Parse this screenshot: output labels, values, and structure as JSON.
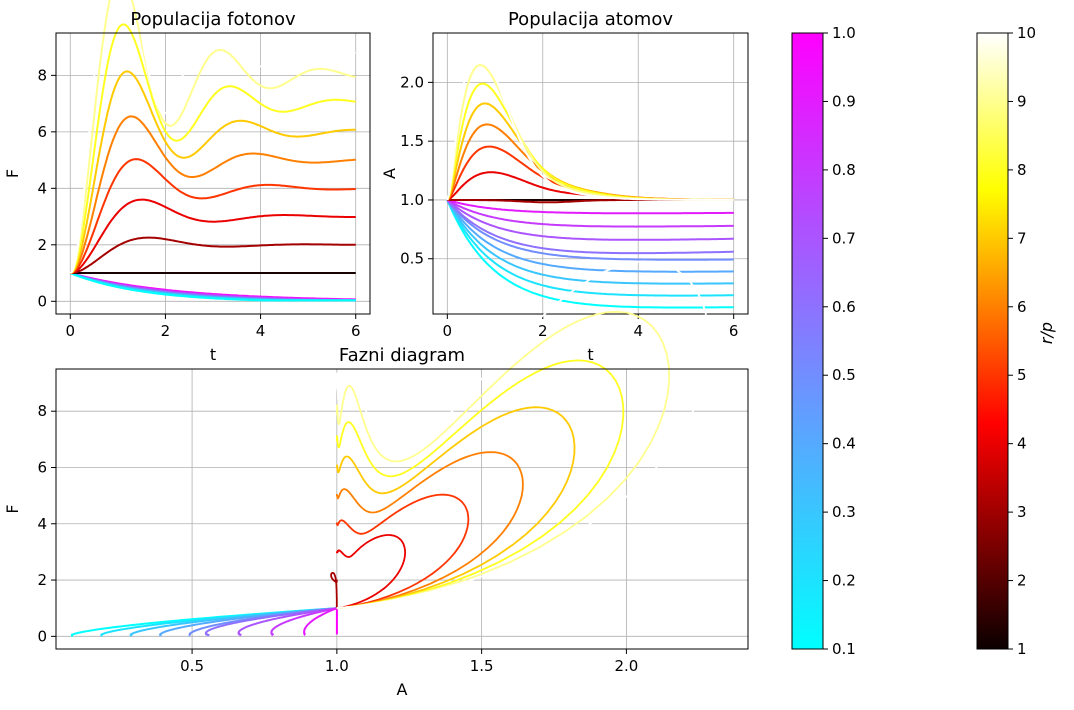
{
  "chart_data": [
    {
      "id": "photons",
      "type": "line",
      "title": "Populacija fotonov",
      "xlabel": "t",
      "ylabel": "F",
      "xlim": [
        -0.3,
        6.3
      ],
      "ylim": [
        -0.45,
        9.5
      ],
      "xticks": [
        0,
        2,
        4,
        6
      ],
      "yticks": [
        0,
        2,
        4,
        6,
        8
      ],
      "grid": true
    },
    {
      "id": "atoms",
      "type": "line",
      "title": "Populacija atomov",
      "xlabel": "t",
      "ylabel": "A",
      "xlim": [
        -0.3,
        6.3
      ],
      "ylim": [
        0.03,
        2.42
      ],
      "xticks": [
        0,
        2,
        4,
        6
      ],
      "yticks": [
        0.5,
        1.0,
        1.5,
        2.0
      ],
      "grid": true
    },
    {
      "id": "phase",
      "type": "line",
      "title": "Fazni diagram",
      "xlabel": "A",
      "ylabel": "F",
      "xlim": [
        0.03,
        2.42
      ],
      "ylim": [
        -0.45,
        9.5
      ],
      "xticks": [
        0.5,
        1.0,
        1.5,
        2.0
      ],
      "yticks": [
        0,
        2,
        4,
        6,
        8
      ],
      "grid": true
    }
  ],
  "series": {
    "r_over_p_values": [
      1,
      2,
      3,
      4,
      5,
      6,
      7,
      8,
      9,
      10
    ],
    "r_over_p_sub_values": [
      0.1,
      0.2,
      0.3,
      0.4,
      0.5,
      0.6,
      0.7,
      0.8,
      0.9,
      1.0
    ],
    "photon_steady_state": [
      1,
      2,
      3,
      4,
      5,
      6,
      7,
      8,
      9,
      10
    ],
    "photon_peak": [
      1.0,
      2.2,
      3.4,
      4.6,
      5.8,
      6.9,
      8.0,
      9.1
    ],
    "atom_peak": [
      1.0,
      1.24,
      1.46,
      1.65,
      1.83,
      2.0,
      2.16,
      2.3
    ],
    "atom_steady_state_sub": [
      0.1,
      0.2,
      0.3,
      0.4,
      0.5,
      0.6,
      0.7,
      0.8,
      0.9,
      1.0
    ]
  },
  "colorbars": [
    {
      "id": "cool",
      "colors": [
        "#00ffff",
        "#ff00ff"
      ],
      "range": [
        0.1,
        1.0
      ],
      "ticks": [
        "0.1",
        "0.2",
        "0.3",
        "0.4",
        "0.5",
        "0.6",
        "0.7",
        "0.8",
        "0.9",
        "1.0"
      ],
      "label": ""
    },
    {
      "id": "hot",
      "colors": [
        "#000000",
        "#ff0000",
        "#ffff00",
        "#ffffff"
      ],
      "range": [
        1,
        10
      ],
      "ticks": [
        "1",
        "2",
        "3",
        "4",
        "5",
        "6",
        "7",
        "8",
        "9",
        "10"
      ],
      "label": "r/p"
    }
  ]
}
